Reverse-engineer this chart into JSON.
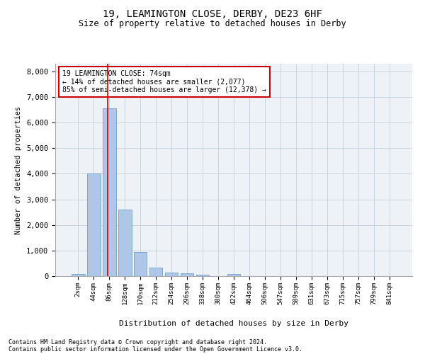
{
  "title_line1": "19, LEAMINGTON CLOSE, DERBY, DE23 6HF",
  "title_line2": "Size of property relative to detached houses in Derby",
  "xlabel": "Distribution of detached houses by size in Derby",
  "ylabel": "Number of detached properties",
  "bar_labels": [
    "2sqm",
    "44sqm",
    "86sqm",
    "128sqm",
    "170sqm",
    "212sqm",
    "254sqm",
    "296sqm",
    "338sqm",
    "380sqm",
    "422sqm",
    "464sqm",
    "506sqm",
    "547sqm",
    "589sqm",
    "631sqm",
    "673sqm",
    "715sqm",
    "757sqm",
    "799sqm",
    "841sqm"
  ],
  "bar_heights": [
    70,
    4000,
    6550,
    2600,
    950,
    320,
    135,
    100,
    55,
    0,
    70,
    0,
    0,
    0,
    0,
    0,
    0,
    0,
    0,
    0,
    0
  ],
  "bar_color": "#aec6e8",
  "bar_edge_color": "#5a96c8",
  "vline_x": 1.88,
  "annotation_text": "19 LEAMINGTON CLOSE: 74sqm\n← 14% of detached houses are smaller (2,077)\n85% of semi-detached houses are larger (12,378) →",
  "annotation_box_color": "#ffffff",
  "annotation_box_edge": "#cc0000",
  "vline_color": "#cc0000",
  "ylim": [
    0,
    8300
  ],
  "yticks": [
    0,
    1000,
    2000,
    3000,
    4000,
    5000,
    6000,
    7000,
    8000
  ],
  "grid_color": "#c8d4e0",
  "background_color": "#eef2f7",
  "footer_line1": "Contains HM Land Registry data © Crown copyright and database right 2024.",
  "footer_line2": "Contains public sector information licensed under the Open Government Licence v3.0."
}
